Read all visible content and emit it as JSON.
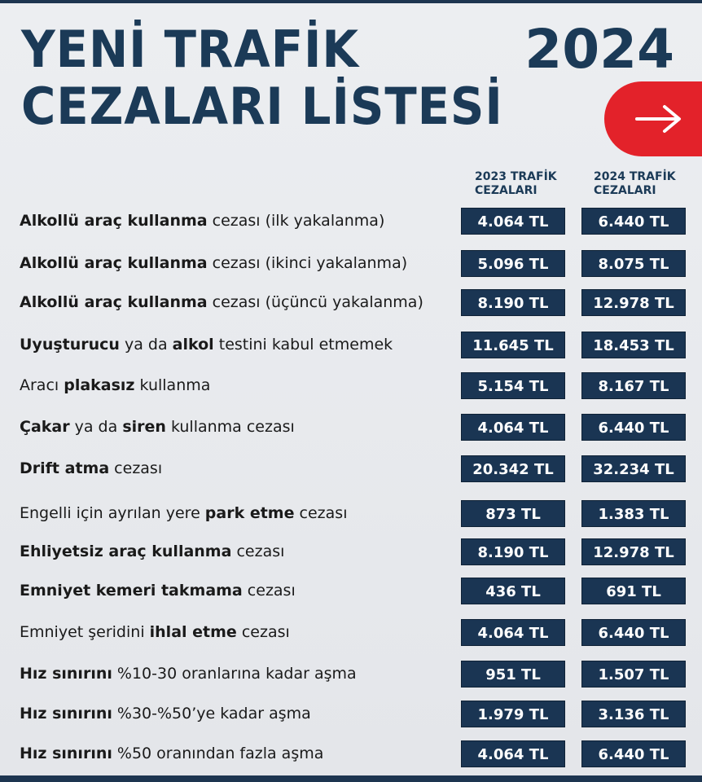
{
  "header": {
    "title_line1": "YENİ TRAFİK",
    "title_line2": "CEZALARI LİSTESİ",
    "year": "2024",
    "arrow_icon": "arrow-right-icon",
    "accent_color": "#e3222a",
    "primary_color": "#1b3a57"
  },
  "columns": {
    "col2023_line1": "2023 TRAFİK",
    "col2023_line2": "CEZALARI",
    "col2024_line1": "2024 TRAFİK",
    "col2024_line2": "CEZALARI"
  },
  "rows": [
    {
      "b1": "Alkollü araç kullanma",
      "t1": " cezası (ilk yakalanma)",
      "b2": "",
      "t2": "",
      "v2023": "4.064 TL",
      "v2024": "6.440 TL"
    },
    {
      "b1": "Alkollü araç kullanma",
      "t1": " cezası (ikinci yakalanma)",
      "b2": "",
      "t2": "",
      "v2023": "5.096 TL",
      "v2024": "8.075 TL"
    },
    {
      "b1": "Alkollü araç kullanma",
      "t1": " cezası (üçüncü yakalanma)",
      "b2": "",
      "t2": "",
      "v2023": "8.190 TL",
      "v2024": "12.978 TL"
    },
    {
      "b1": "Uyuşturucu",
      "t1": " ya da ",
      "b2": "alkol",
      "t2": " testini kabul etmemek",
      "v2023": "11.645 TL",
      "v2024": "18.453 TL"
    },
    {
      "p0": "Aracı ",
      "b1": "plakasız",
      "t1": " kullanma",
      "b2": "",
      "t2": "",
      "v2023": "5.154 TL",
      "v2024": "8.167 TL"
    },
    {
      "b1": "Çakar",
      "t1": " ya da ",
      "b2": "siren",
      "t2": " kullanma cezası",
      "v2023": "4.064 TL",
      "v2024": "6.440 TL"
    },
    {
      "b1": "Drift atma",
      "t1": " cezası",
      "b2": "",
      "t2": "",
      "v2023": "20.342 TL",
      "v2024": "32.234 TL"
    },
    {
      "p0": "Engelli için ayrılan yere ",
      "b1": "park etme",
      "t1": " cezası",
      "b2": "",
      "t2": "",
      "v2023": "873 TL",
      "v2024": "1.383 TL"
    },
    {
      "b1": "Ehliyetsiz araç kullanma",
      "t1": " cezası",
      "b2": "",
      "t2": "",
      "v2023": "8.190 TL",
      "v2024": "12.978 TL"
    },
    {
      "b1": "Emniyet kemeri takmama",
      "t1": " cezası",
      "b2": "",
      "t2": "",
      "v2023": "436 TL",
      "v2024": "691 TL"
    },
    {
      "p0": "Emniyet şeridini ",
      "b1": "ihlal etme",
      "t1": " cezası",
      "b2": "",
      "t2": "",
      "v2023": "4.064 TL",
      "v2024": "6.440 TL"
    },
    {
      "b1": "Hız sınırını",
      "t1": " %10-30 oranlarına kadar aşma",
      "b2": "",
      "t2": "",
      "v2023": "951 TL",
      "v2024": "1.507 TL"
    },
    {
      "b1": "Hız sınırını",
      "t1": " %30-%50’ye kadar aşma",
      "b2": "",
      "t2": "",
      "v2023": "1.979 TL",
      "v2024": "3.136 TL"
    },
    {
      "b1": "Hız sınırını",
      "t1": " %50 oranından fazla aşma",
      "b2": "",
      "t2": "",
      "v2023": "4.064 TL",
      "v2024": "6.440 TL"
    }
  ]
}
